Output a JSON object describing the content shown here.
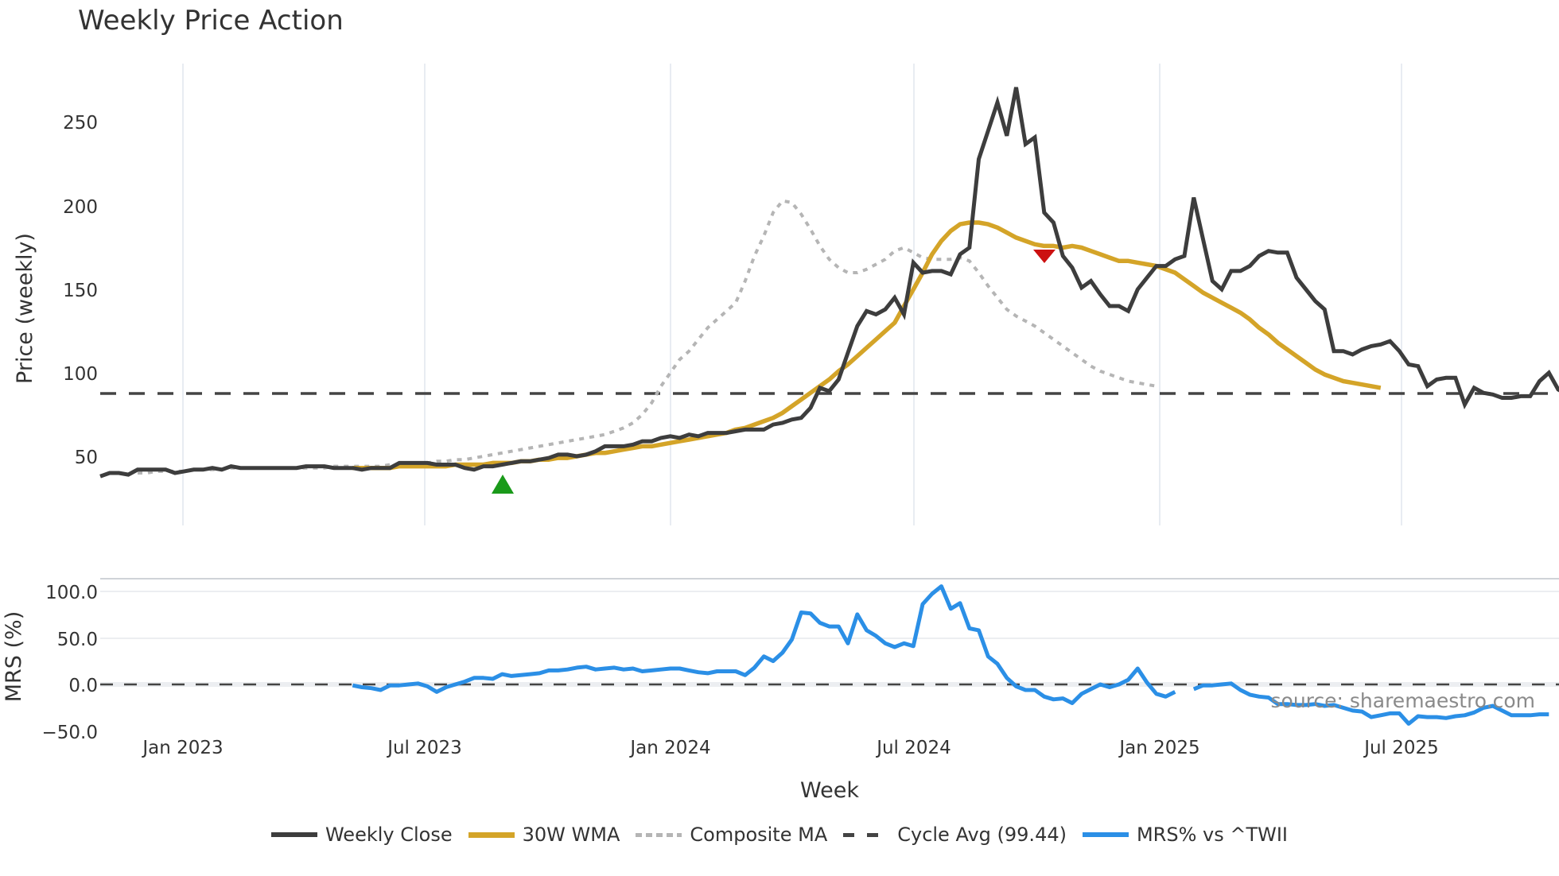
{
  "title": "Weekly Price Action",
  "source_note": "source: sharemaestro.com",
  "colors": {
    "weekly_close": "#3d3d3d",
    "wma30": "#d4a428",
    "composite_ma": "#b5b5b5",
    "cycle_avg": "#444444",
    "mrs": "#2b8fe6",
    "buy_marker": "#1a9a1a",
    "sell_marker": "#cc1111",
    "grid": "#e8ecf2"
  },
  "legend": [
    {
      "key": "weekly_close",
      "label": "Weekly Close"
    },
    {
      "key": "wma30",
      "label": "30W WMA"
    },
    {
      "key": "composite_ma",
      "label": "Composite MA"
    },
    {
      "key": "cycle_avg",
      "label": "Cycle Avg (99.44)"
    },
    {
      "key": "mrs",
      "label": "MRS% vs ^TWII"
    }
  ],
  "chart_data": [
    {
      "type": "line",
      "title": "Weekly Price Action",
      "xlabel": "Week",
      "ylabel": "Price (weekly)",
      "x_ticks": [
        "Jan 2023",
        "Jul 2023",
        "Jan 2024",
        "Jul 2024",
        "Jan 2025",
        "Jul 2025"
      ],
      "y_ticks": [
        50,
        100,
        150,
        200,
        250
      ],
      "ylim": [
        28,
        280
      ],
      "grid": "vertical only",
      "legend_position": "bottom",
      "annotations": [
        {
          "type": "hline",
          "label": "Cycle Avg (99.44)",
          "y": 99.44,
          "style": "dashed"
        },
        {
          "type": "marker",
          "shape": "triangle-up",
          "color": "green",
          "x": "2023-08",
          "y": 46
        },
        {
          "type": "marker",
          "shape": "triangle-down",
          "color": "red",
          "x": "2024-10",
          "y": 176
        }
      ],
      "series": [
        {
          "name": "Weekly Close",
          "x_start": "2022-11",
          "step": "1 week",
          "values": [
            38,
            40,
            40,
            39,
            42,
            42,
            42,
            42,
            40,
            41,
            42,
            42,
            43,
            42,
            44,
            43,
            43,
            43,
            43,
            43,
            43,
            43,
            44,
            44,
            44,
            43,
            43,
            43,
            42,
            43,
            43,
            43,
            46,
            46,
            46,
            46,
            45,
            45,
            45,
            43,
            42,
            44,
            44,
            45,
            46,
            47,
            47,
            48,
            49,
            51,
            51,
            50,
            51,
            53,
            56,
            56,
            56,
            57,
            59,
            59,
            61,
            62,
            61,
            63,
            62,
            64,
            64,
            64,
            65,
            66,
            66,
            66,
            69,
            70,
            72,
            73,
            79,
            91,
            89,
            96,
            112,
            128,
            137,
            135,
            138,
            145,
            135,
            166,
            160,
            161,
            161,
            159,
            171,
            175,
            228,
            245,
            262,
            242,
            271,
            237,
            241,
            196,
            190,
            170,
            163,
            151,
            155,
            147,
            140,
            140,
            137,
            150,
            157,
            164,
            164,
            168,
            170,
            205,
            180,
            155,
            150,
            161,
            161,
            164,
            170,
            173,
            172,
            172,
            157,
            150,
            143,
            138,
            113,
            113,
            111,
            114,
            116,
            117,
            119,
            113,
            105,
            104,
            92,
            96,
            97,
            97,
            81,
            91,
            88,
            87,
            85,
            85,
            86,
            86,
            95,
            100,
            90,
            87,
            87,
            87,
            86,
            85
          ]
        },
        {
          "name": "30W WMA",
          "x_start": "2023-05",
          "step": "1 week",
          "values": [
            43,
            43,
            43,
            43,
            43,
            44,
            44,
            44,
            44,
            44,
            44,
            45,
            45,
            45,
            45,
            46,
            46,
            46,
            47,
            47,
            48,
            48,
            49,
            49,
            50,
            51,
            52,
            52,
            53,
            54,
            55,
            56,
            56,
            57,
            58,
            59,
            60,
            61,
            62,
            63,
            64,
            66,
            67,
            69,
            71,
            73,
            76,
            80,
            84,
            88,
            92,
            96,
            101,
            105,
            110,
            115,
            120,
            125,
            130,
            140,
            150,
            160,
            171,
            179,
            185,
            189,
            190,
            190,
            189,
            187,
            184,
            181,
            179,
            177,
            176,
            176,
            175,
            176,
            175,
            173,
            171,
            169,
            167,
            167,
            166,
            165,
            164,
            162,
            160,
            156,
            152,
            148,
            145,
            142,
            139,
            136,
            132,
            127,
            123,
            118,
            114,
            110,
            106,
            102,
            99,
            97,
            95,
            94,
            93,
            92,
            91
          ]
        },
        {
          "name": "Composite MA",
          "x_start": "2022-11",
          "step": "1 week",
          "values": [
            40,
            40,
            41,
            41,
            41,
            41,
            42,
            42,
            42,
            42,
            43,
            43,
            43,
            43,
            43,
            43,
            43,
            43,
            43,
            43,
            43,
            44,
            44,
            44,
            44,
            44,
            44,
            45,
            45,
            45,
            46,
            46,
            47,
            47,
            48,
            48,
            49,
            50,
            51,
            52,
            53,
            54,
            55,
            56,
            57,
            58,
            59,
            60,
            61,
            62,
            63,
            65,
            67,
            70,
            75,
            82,
            92,
            100,
            108,
            113,
            120,
            127,
            132,
            137,
            142,
            155,
            170,
            182,
            196,
            203,
            202,
            195,
            186,
            176,
            168,
            163,
            160,
            160,
            162,
            165,
            168,
            173,
            175,
            172,
            169,
            168,
            168,
            168,
            169,
            167,
            160,
            152,
            145,
            138,
            134,
            131,
            128,
            124,
            120,
            116,
            112,
            108,
            104,
            101,
            99,
            97,
            95,
            94,
            93,
            92
          ]
        },
        {
          "name": "Cycle Avg (99.44)",
          "values": [
            99.44
          ]
        }
      ]
    },
    {
      "type": "line",
      "ylabel": "MRS (%)",
      "xlabel": "Week",
      "y_ticks": [
        -50.0,
        0.0,
        50.0,
        100.0
      ],
      "ylim": [
        -55,
        115
      ],
      "annotations": [
        {
          "type": "hline",
          "y": 0,
          "style": "dashed"
        }
      ],
      "series": [
        {
          "name": "MRS% vs ^TWII",
          "x_start": "2023-05",
          "step": "1 week",
          "values": [
            -1,
            -3,
            -4,
            -6,
            -1,
            -1,
            0,
            1,
            -2,
            -8,
            -3,
            0,
            3,
            7,
            7,
            6,
            11,
            9,
            10,
            11,
            12,
            15,
            15,
            16,
            18,
            19,
            16,
            17,
            18,
            16,
            17,
            14,
            15,
            16,
            17,
            17,
            15,
            13,
            12,
            14,
            14,
            14,
            10,
            18,
            30,
            25,
            34,
            48,
            77,
            76,
            66,
            62,
            62,
            44,
            75,
            58,
            52,
            44,
            40,
            44,
            41,
            86,
            97,
            105,
            81,
            87,
            60,
            58,
            30,
            22,
            7,
            -2,
            -6,
            -6,
            -13,
            -16,
            -15,
            -20,
            -10,
            -5,
            0,
            -3,
            0,
            5,
            17,
            2,
            -10,
            -13,
            -8,
            null,
            -5,
            -1,
            -1,
            0,
            1,
            -6,
            -11,
            -13,
            -14,
            -21,
            -21,
            -22,
            -22,
            -21,
            -23,
            -22,
            -25,
            -28,
            -29,
            -35,
            -33,
            -31,
            -31,
            -42,
            -34,
            -35,
            -35,
            -36,
            -34,
            -33,
            -30,
            -25,
            -23,
            -28,
            -33,
            -33,
            -33,
            -32,
            -32
          ]
        }
      ]
    }
  ],
  "axes": {
    "price": {
      "title": "Price (weekly)",
      "ticks": [
        "250",
        "200",
        "150",
        "100",
        "50"
      ]
    },
    "mrs": {
      "title": "MRS (%)",
      "ticks": [
        "100.0",
        "50.0",
        "0.0",
        "−50.0"
      ]
    },
    "x": {
      "title": "Week",
      "ticks": [
        "Jan 2023",
        "Jul 2023",
        "Jan 2024",
        "Jul 2024",
        "Jan 2025",
        "Jul 2025"
      ]
    }
  }
}
